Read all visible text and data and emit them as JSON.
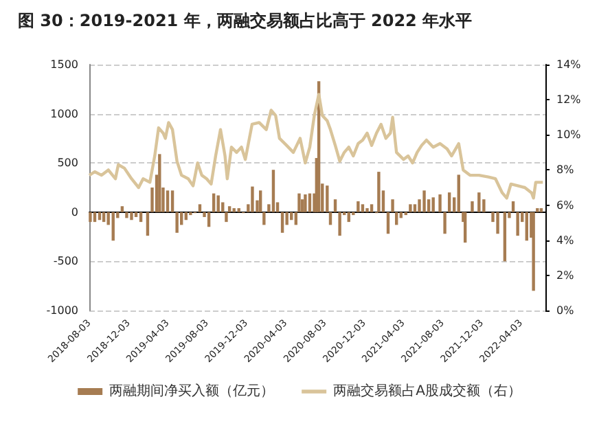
{
  "chart_data": {
    "type": "bar",
    "title": "图 30：2019-2021 年，两融交易额占比高于 2022 年水平",
    "xlim": [
      "2018-08-03",
      "2022-06-18"
    ],
    "xticks": [
      "2018-08-03",
      "2018-12-03",
      "2019-04-03",
      "2019-08-03",
      "2019-12-03",
      "2020-04-03",
      "2020-08-03",
      "2020-12-03",
      "2021-04-03",
      "2021-08-03",
      "2021-12-03",
      "2022-04-03"
    ],
    "ylim": [
      -1000,
      1500
    ],
    "yticks": [
      -1000,
      -500,
      0,
      500,
      1000,
      1500
    ],
    "y2lim": [
      0,
      14
    ],
    "y2ticks": [
      {
        "value": 0,
        "label": "0%"
      },
      {
        "value": 2,
        "label": "2%"
      },
      {
        "value": 4,
        "label": "4%"
      },
      {
        "value": 6,
        "label": "6%"
      },
      {
        "value": 8,
        "label": "8%"
      },
      {
        "value": 10,
        "label": "10%"
      },
      {
        "value": 12,
        "label": "12%"
      },
      {
        "value": 14,
        "label": "14%"
      }
    ],
    "grid": "y",
    "legend": "bottom",
    "series": [
      {
        "name": "两融期间净买入额（亿元）",
        "color": "#a67c52",
        "x": [
          "2018-08-06",
          "2018-08-20",
          "2018-09-04",
          "2018-09-17",
          "2018-10-01",
          "2018-10-16",
          "2018-10-30",
          "2018-11-13",
          "2018-11-27",
          "2018-12-12",
          "2018-12-26",
          "2019-01-10",
          "2019-01-31",
          "2019-02-14",
          "2019-02-28",
          "2019-03-09",
          "2019-03-20",
          "2019-04-03",
          "2019-04-18",
          "2019-05-02",
          "2019-05-16",
          "2019-05-30",
          "2019-06-13",
          "2019-06-27",
          "2019-07-12",
          "2019-07-26",
          "2019-08-09",
          "2019-08-24",
          "2019-09-07",
          "2019-09-21",
          "2019-10-02",
          "2019-10-12",
          "2019-10-26",
          "2019-11-10",
          "2019-11-24",
          "2019-12-09",
          "2019-12-22",
          "2020-01-06",
          "2020-01-16",
          "2020-01-27",
          "2020-02-11",
          "2020-02-25",
          "2020-03-09",
          "2020-03-24",
          "2020-04-07",
          "2020-04-21",
          "2020-05-05",
          "2020-05-15",
          "2020-05-25",
          "2020-06-03",
          "2020-06-17",
          "2020-07-01",
          "2020-07-08",
          "2020-07-15",
          "2020-07-26",
          "2020-08-10",
          "2020-08-20",
          "2020-09-04",
          "2020-09-18",
          "2020-10-02",
          "2020-10-16",
          "2020-10-30",
          "2020-11-14",
          "2020-11-28",
          "2020-12-12",
          "2020-12-26",
          "2021-01-10",
          "2021-01-17",
          "2021-01-31",
          "2021-02-15",
          "2021-03-01",
          "2021-03-13",
          "2021-03-27",
          "2021-04-11",
          "2021-04-25",
          "2021-05-09",
          "2021-05-23",
          "2021-06-07",
          "2021-06-21",
          "2021-07-05",
          "2021-07-26",
          "2021-08-10",
          "2021-08-24",
          "2021-09-08",
          "2021-09-22",
          "2021-10-06",
          "2021-10-12",
          "2021-11-03",
          "2021-11-24",
          "2021-12-09",
          "2022-01-06",
          "2022-01-21",
          "2022-02-12",
          "2022-02-26",
          "2022-03-10",
          "2022-03-24",
          "2022-04-07",
          "2022-04-21",
          "2022-05-05",
          "2022-05-12",
          "2022-05-24",
          "2022-06-05"
        ],
        "values": [
          -100,
          -100,
          -80,
          -100,
          -130,
          -290,
          -60,
          60,
          -60,
          -80,
          -50,
          -100,
          -240,
          250,
          380,
          590,
          250,
          220,
          220,
          -210,
          -130,
          -80,
          -30,
          -10,
          80,
          -50,
          -150,
          190,
          170,
          100,
          -100,
          60,
          40,
          40,
          -10,
          80,
          260,
          120,
          220,
          -130,
          80,
          430,
          100,
          -210,
          -130,
          -80,
          -130,
          190,
          130,
          180,
          190,
          190,
          550,
          1330,
          290,
          270,
          -130,
          130,
          -240,
          -30,
          -100,
          -30,
          110,
          80,
          40,
          80,
          -10,
          410,
          220,
          -220,
          130,
          -130,
          -60,
          -30,
          80,
          80,
          130,
          220,
          130,
          150,
          180,
          -220,
          200,
          150,
          380,
          -100,
          -310,
          110,
          200,
          130,
          -100,
          -220,
          -500,
          -60,
          110,
          -240,
          -100,
          -290,
          -260,
          -800,
          40,
          40
        ]
      },
      {
        "type": "line",
        "axis": "y2",
        "name": "两融交易额占A股成交额（右）",
        "color": "#d9c49a",
        "x": [
          "2018-08-03",
          "2018-08-20",
          "2018-09-10",
          "2018-10-01",
          "2018-10-23",
          "2018-11-01",
          "2018-11-20",
          "2018-12-12",
          "2019-01-03",
          "2019-01-17",
          "2019-02-07",
          "2019-02-22",
          "2019-03-06",
          "2019-03-20",
          "2019-03-27",
          "2019-04-06",
          "2019-04-18",
          "2019-05-02",
          "2019-05-16",
          "2019-06-06",
          "2019-06-21",
          "2019-07-05",
          "2019-07-18",
          "2019-08-02",
          "2019-08-16",
          "2019-08-30",
          "2019-09-14",
          "2019-09-28",
          "2019-10-05",
          "2019-10-18",
          "2019-11-03",
          "2019-11-18",
          "2019-11-30",
          "2019-12-21",
          "2020-01-12",
          "2020-02-03",
          "2020-02-18",
          "2020-03-03",
          "2020-03-15",
          "2020-04-06",
          "2020-04-27",
          "2020-05-18",
          "2020-06-03",
          "2020-06-17",
          "2020-07-01",
          "2020-07-15",
          "2020-07-26",
          "2020-08-10",
          "2020-08-20",
          "2020-09-04",
          "2020-09-18",
          "2020-10-02",
          "2020-10-16",
          "2020-10-30",
          "2020-11-14",
          "2020-11-28",
          "2020-12-12",
          "2020-12-26",
          "2021-01-10",
          "2021-01-24",
          "2021-02-08",
          "2021-02-22",
          "2021-03-01",
          "2021-03-13",
          "2021-04-04",
          "2021-04-18",
          "2021-05-02",
          "2021-05-16",
          "2021-05-30",
          "2021-06-14",
          "2021-07-05",
          "2021-07-26",
          "2021-08-17",
          "2021-08-31",
          "2021-09-22",
          "2021-10-06",
          "2021-10-27",
          "2021-11-24",
          "2021-12-23",
          "2022-01-14",
          "2022-02-04",
          "2022-02-18",
          "2022-03-03",
          "2022-03-24",
          "2022-04-15",
          "2022-05-06",
          "2022-05-12",
          "2022-05-19",
          "2022-06-10"
        ],
        "values": [
          7.7,
          7.9,
          7.7,
          8.0,
          7.5,
          8.3,
          8.1,
          7.5,
          7.0,
          7.5,
          7.3,
          8.8,
          10.4,
          10.1,
          9.8,
          10.7,
          10.3,
          8.5,
          7.7,
          7.5,
          7.1,
          8.4,
          7.7,
          7.5,
          7.2,
          8.8,
          10.3,
          8.8,
          7.5,
          9.3,
          9.0,
          9.3,
          8.6,
          10.6,
          10.7,
          10.3,
          11.4,
          11.1,
          9.8,
          9.4,
          9.0,
          9.8,
          8.4,
          9.3,
          11.1,
          12.3,
          11.1,
          10.8,
          10.3,
          9.4,
          8.5,
          9.0,
          9.3,
          8.8,
          9.5,
          9.7,
          10.1,
          9.4,
          10.1,
          10.6,
          9.8,
          10.1,
          11.0,
          9.0,
          8.6,
          8.8,
          8.4,
          9.0,
          9.4,
          9.7,
          9.3,
          9.5,
          9.2,
          8.8,
          9.5,
          8.0,
          7.7,
          7.7,
          7.6,
          7.5,
          6.7,
          6.4,
          7.2,
          7.1,
          7.0,
          6.7,
          6.4,
          7.3,
          7.3
        ]
      }
    ]
  }
}
